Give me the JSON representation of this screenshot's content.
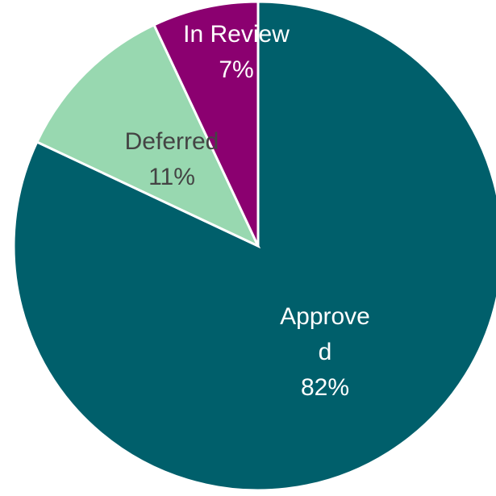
{
  "chart_data": {
    "type": "pie",
    "categories": [
      "Approved",
      "Deferred",
      "In Review"
    ],
    "values": [
      82,
      11,
      7
    ],
    "value_labels": [
      "82%",
      "11%",
      "7%"
    ],
    "colors": [
      "#005f6b",
      "#98d8b0",
      "#8b0070"
    ],
    "label_colors": [
      "#ffffff",
      "#444444",
      "#ffffff"
    ]
  }
}
